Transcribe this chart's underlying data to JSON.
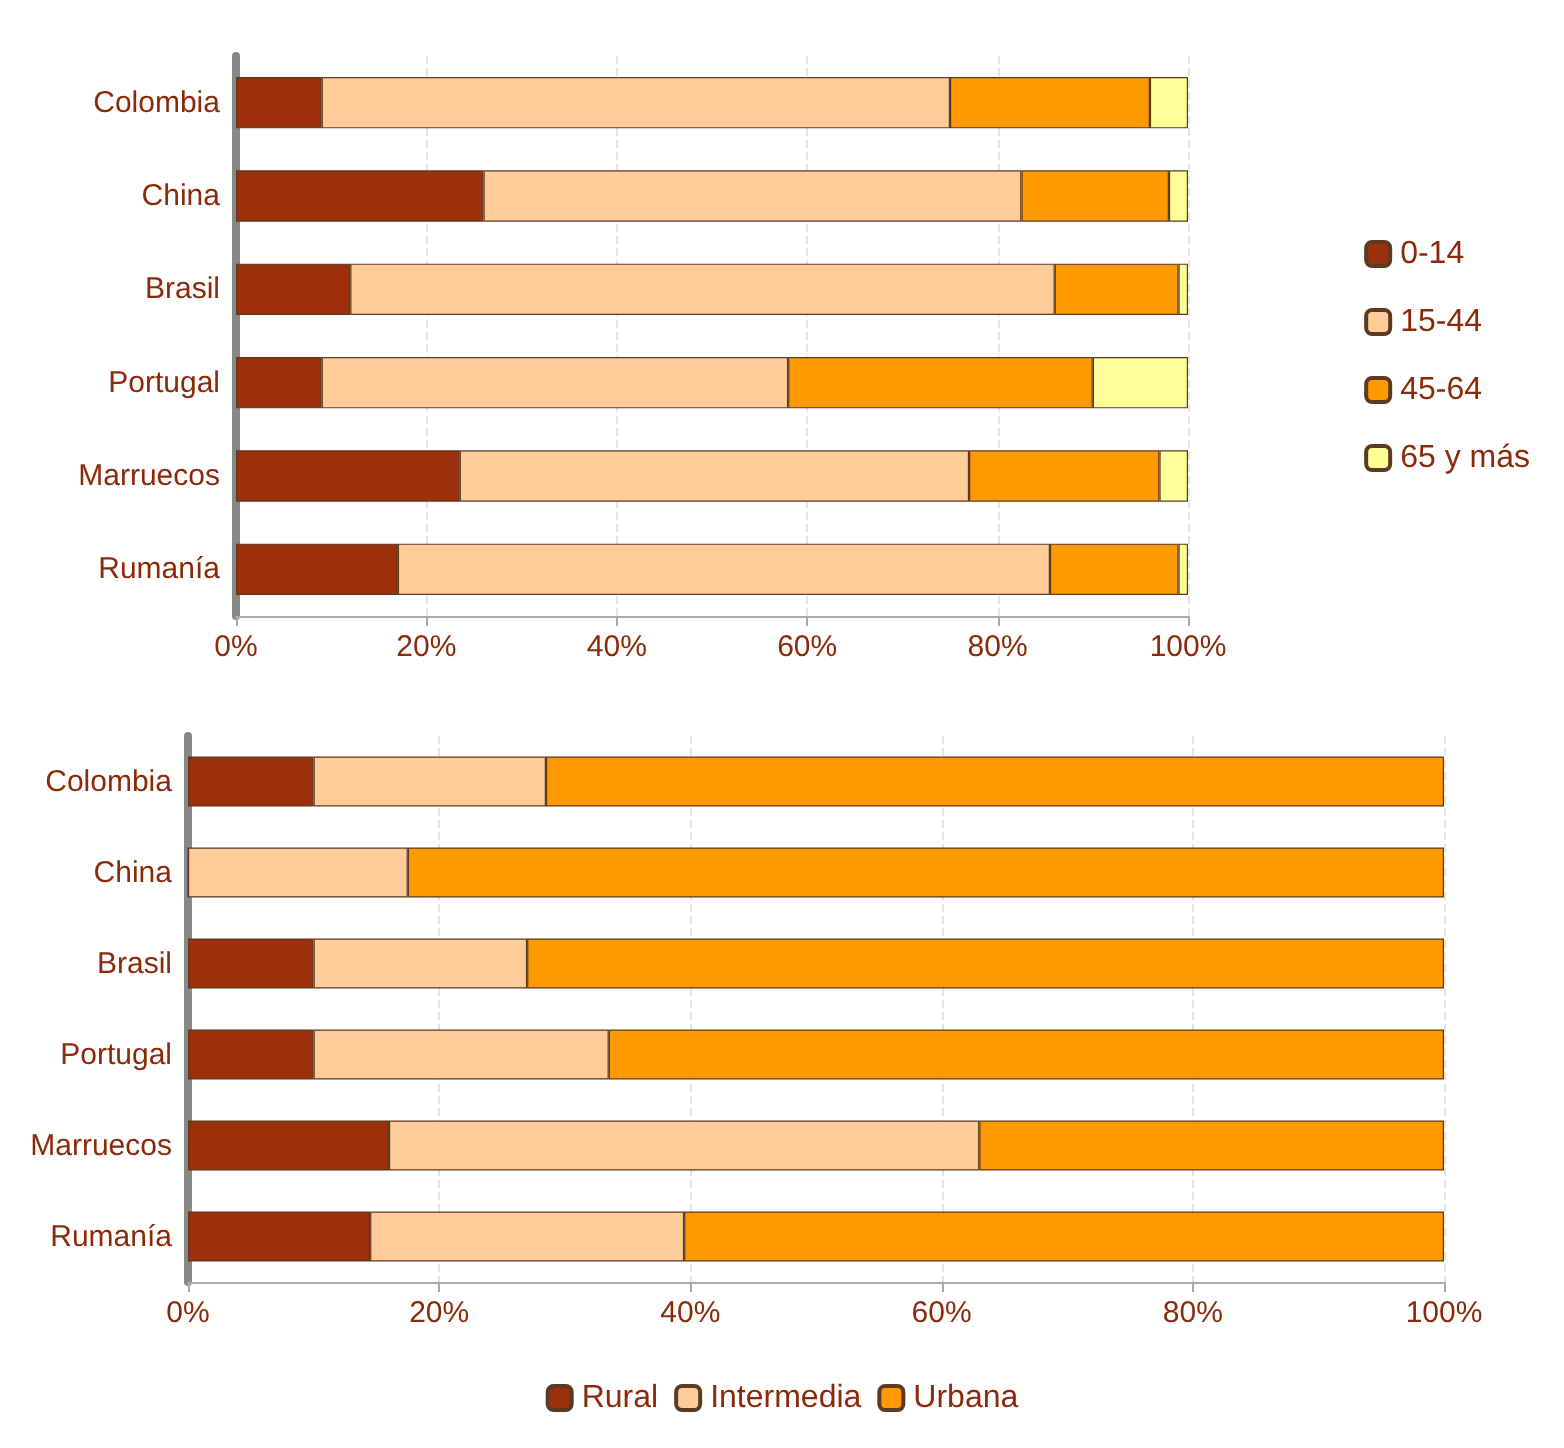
{
  "chart_data": [
    {
      "type": "bar",
      "orientation": "horizontal",
      "stacked": true,
      "categories": [
        "Colombia",
        "China",
        "Brasil",
        "Portugal",
        "Marruecos",
        "Rumanía"
      ],
      "series": [
        {
          "name": "0-14",
          "color": "#9c2f0c",
          "values": [
            9,
            26,
            12,
            9,
            23.5,
            17
          ]
        },
        {
          "name": "15-44",
          "color": "#ffcc99",
          "values": [
            66,
            56.5,
            74,
            49,
            53.5,
            68.5
          ]
        },
        {
          "name": "45-64",
          "color": "#ff9900",
          "values": [
            21,
            15.5,
            13,
            32,
            20,
            13.5
          ]
        },
        {
          "name": "65 y más",
          "color": "#ffff99",
          "values": [
            4,
            2,
            1,
            10,
            3,
            1
          ]
        }
      ],
      "xlim": [
        0,
        100
      ],
      "xticks": [
        {
          "value": 0,
          "label": "0%"
        },
        {
          "value": 20,
          "label": "20%"
        },
        {
          "value": 40,
          "label": "40%"
        },
        {
          "value": 60,
          "label": "60%"
        },
        {
          "value": 80,
          "label": "80%"
        },
        {
          "value": 100,
          "label": "100%"
        }
      ],
      "grid": "x",
      "legend": "right"
    },
    {
      "type": "bar",
      "orientation": "horizontal",
      "stacked": true,
      "categories": [
        "Colombia",
        "China",
        "Brasil",
        "Portugal",
        "Marruecos",
        "Rumanía"
      ],
      "series": [
        {
          "name": "Rural",
          "color": "#9c2f0c",
          "values": [
            10,
            0,
            10,
            10,
            16,
            14.5
          ]
        },
        {
          "name": "Intermedia",
          "color": "#ffcc99",
          "values": [
            18.5,
            17.5,
            17,
            23.5,
            47,
            25
          ]
        },
        {
          "name": "Urbana",
          "color": "#ff9900",
          "values": [
            71.5,
            82.5,
            73,
            66.5,
            37,
            60.5
          ]
        }
      ],
      "xlim": [
        0,
        100
      ],
      "xticks": [
        {
          "value": 0,
          "label": "0%"
        },
        {
          "value": 20,
          "label": "20%"
        },
        {
          "value": 40,
          "label": "40%"
        },
        {
          "value": 60,
          "label": "60%"
        },
        {
          "value": 80,
          "label": "80%"
        },
        {
          "value": 100,
          "label": "100%"
        }
      ],
      "grid": "x",
      "legend": "bottom"
    }
  ]
}
